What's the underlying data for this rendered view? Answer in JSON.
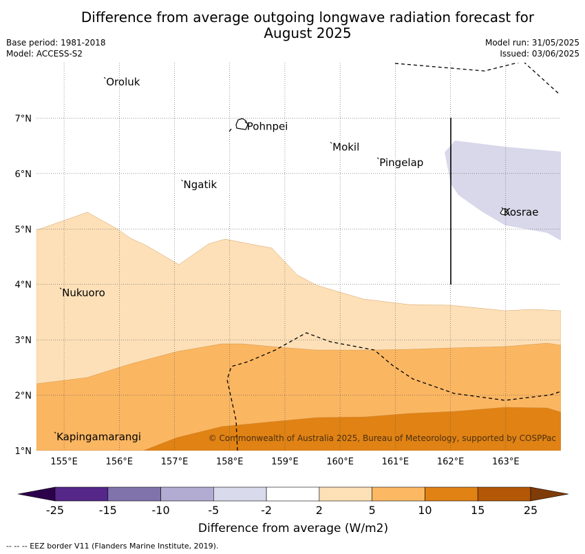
{
  "title_line1": "Difference from average outgoing longwave radiation forecast for",
  "title_line2": "August 2025",
  "base_period": "Base period: 1981-2018",
  "model": "Model: ACCESS-S2",
  "model_run": "Model run: 31/05/2025",
  "issued": "Issued: 03/06/2025",
  "copyright": "© Commonwealth of Australia 2025, Bureau of Meteorology, supported by COSPPac",
  "footer_note": "--  --  -- EEZ border V11 (Flanders Marine Institute, 2019).",
  "map": {
    "lon_range": [
      154.5,
      164.0
    ],
    "lat_range": [
      1.0,
      8.0
    ],
    "lon_ticks": [
      "155°E",
      "156°E",
      "157°E",
      "158°E",
      "159°E",
      "160°E",
      "161°E",
      "162°E",
      "163°E"
    ],
    "lat_ticks": [
      "1°N",
      "2°N",
      "3°N",
      "4°N",
      "5°N",
      "6°N",
      "7°N"
    ],
    "places": [
      {
        "name": "Oroluk",
        "lon": 155.75,
        "lat": 7.65
      },
      {
        "name": "Pohnpei",
        "lon": 158.3,
        "lat": 6.85
      },
      {
        "name": "Mokil",
        "lon": 159.85,
        "lat": 6.48
      },
      {
        "name": "Pingelap",
        "lon": 160.7,
        "lat": 6.2
      },
      {
        "name": "Ngatik",
        "lon": 157.15,
        "lat": 5.8
      },
      {
        "name": "Kosrae",
        "lon": 162.95,
        "lat": 5.3
      },
      {
        "name": "Nukuoro",
        "lon": 154.95,
        "lat": 3.85
      },
      {
        "name": "Kapingamarangi",
        "lon": 154.85,
        "lat": 1.25
      }
    ],
    "colors": {
      "m5_m2": "#d8d8ea",
      "p2_5": "#fde0b8",
      "p5_10": "#fbb662",
      "p10_15": "#e08214",
      "boundary": "#000000"
    }
  },
  "legend": {
    "title": "Difference from average (W/m2)",
    "ticks": [
      "-25",
      "-15",
      "-10",
      "-5",
      "-2",
      "2",
      "5",
      "10",
      "15",
      "25"
    ],
    "colors": [
      "#2d004b",
      "#542788",
      "#8073ac",
      "#b2abd2",
      "#d8daeb",
      "#ffffff",
      "#fee0b6",
      "#fdb863",
      "#e08214",
      "#b35806",
      "#7f3b08"
    ]
  }
}
